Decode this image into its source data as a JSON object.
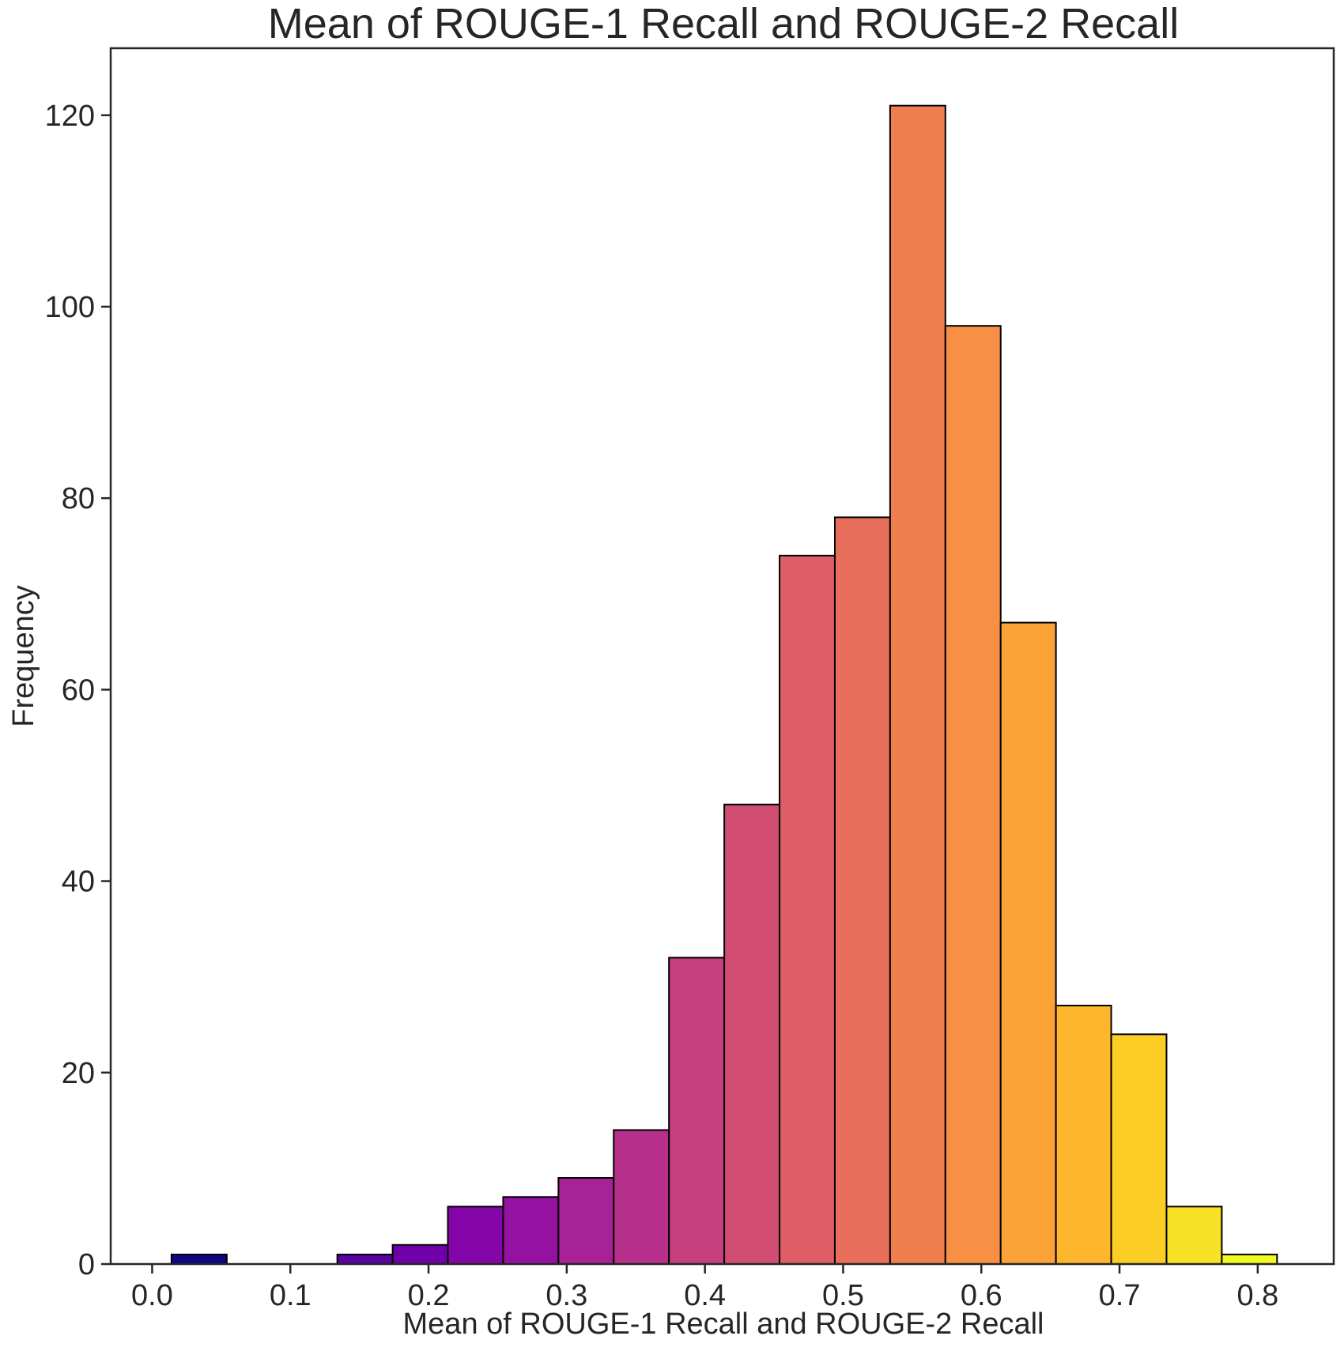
{
  "chart_data": {
    "type": "bar",
    "title": "Mean of ROUGE-1 Recall and ROUGE-2 Recall",
    "xlabel": "Mean of ROUGE-1 Recall and ROUGE-2 Recall",
    "ylabel": "Frequency",
    "xlim": [
      -0.03,
      0.855
    ],
    "ylim": [
      0,
      127
    ],
    "grid": false,
    "xticks": [
      0.0,
      0.1,
      0.2,
      0.3,
      0.4,
      0.5,
      0.6,
      0.7,
      0.8
    ],
    "xtick_labels": [
      "0.0",
      "0.1",
      "0.2",
      "0.3",
      "0.4",
      "0.5",
      "0.6",
      "0.7",
      "0.8"
    ],
    "yticks": [
      0,
      20,
      40,
      60,
      80,
      100,
      120
    ],
    "ytick_labels": [
      "0",
      "20",
      "40",
      "60",
      "80",
      "100",
      "120"
    ],
    "bin_edges": [
      0.014,
      0.054,
      0.094,
      0.134,
      0.174,
      0.214,
      0.254,
      0.294,
      0.334,
      0.374,
      0.414,
      0.454,
      0.494,
      0.534,
      0.574,
      0.614,
      0.654,
      0.694,
      0.734,
      0.774,
      0.814
    ],
    "values": [
      1,
      0,
      0,
      1,
      2,
      6,
      7,
      9,
      14,
      32,
      48,
      74,
      78,
      121,
      98,
      67,
      27,
      24,
      6,
      1
    ],
    "colors": [
      "#0d0887",
      "#2c0594",
      "#43039e",
      "#5b02a3",
      "#6f00a8",
      "#8405a7",
      "#9511a1",
      "#a72197",
      "#b6308b",
      "#c5407e",
      "#d14e72",
      "#dd5e66",
      "#e76e5b",
      "#f07f4f",
      "#f79044",
      "#fca338",
      "#feb72d",
      "#fccd25",
      "#f7e225",
      "#f0f921"
    ]
  }
}
